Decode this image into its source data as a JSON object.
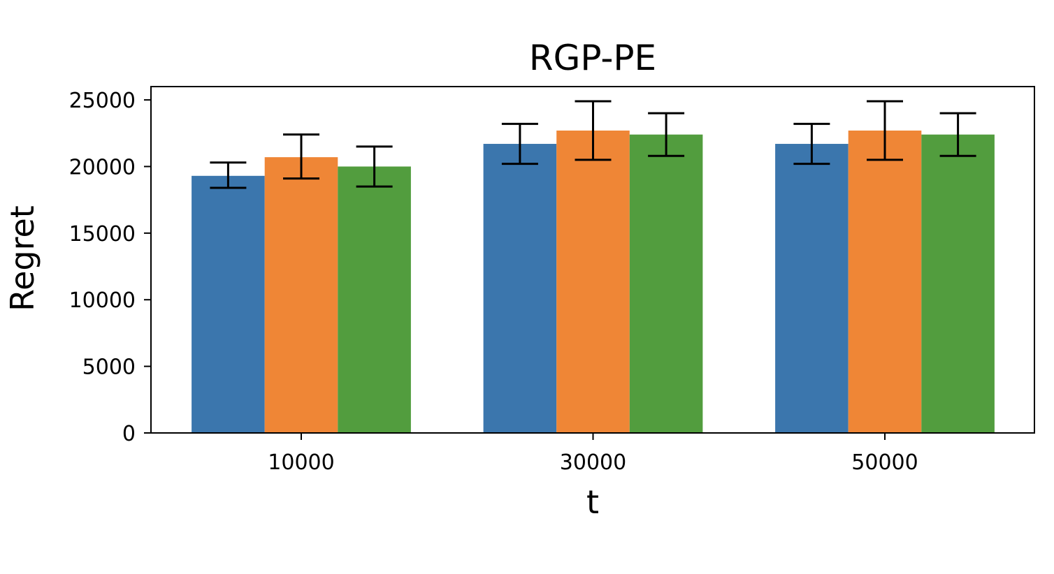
{
  "chart_data": {
    "type": "bar",
    "title": "RGP-PE",
    "xlabel": "t",
    "ylabel": "Regret",
    "categories": [
      "10000",
      "30000",
      "50000"
    ],
    "ylim": [
      0,
      26000
    ],
    "yticks": [
      0,
      5000,
      10000,
      15000,
      20000,
      25000
    ],
    "ytick_labels": [
      "0",
      "5000",
      "10000",
      "15000",
      "20000",
      "25000"
    ],
    "grid": false,
    "legend": "none",
    "series": [
      {
        "color": "#3b76ad",
        "values": [
          19300,
          21700,
          21700
        ],
        "errors": [
          [
            18400,
            20300
          ],
          [
            20200,
            23200
          ],
          [
            20200,
            23200
          ]
        ]
      },
      {
        "color": "#ef8636",
        "values": [
          20700,
          22700,
          22700
        ],
        "errors": [
          [
            19100,
            22400
          ],
          [
            20500,
            24900
          ],
          [
            20500,
            24900
          ]
        ]
      },
      {
        "color": "#529d3e",
        "values": [
          20000,
          22400,
          22400
        ],
        "errors": [
          [
            18500,
            21500
          ],
          [
            20800,
            24000
          ],
          [
            20800,
            24000
          ]
        ]
      }
    ]
  }
}
